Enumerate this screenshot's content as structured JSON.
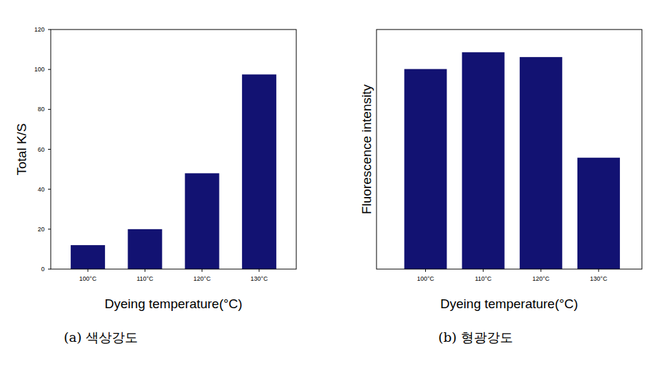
{
  "chart_data": [
    {
      "type": "bar",
      "subtitle": "(a) 색상강도",
      "x_label": "Dyeing temperature(°C)",
      "y_label": "Total K/S",
      "categories": [
        "100°C",
        "110°C",
        "120°C",
        "130°C"
      ],
      "values": [
        12,
        20,
        48,
        97.5
      ],
      "color": "#121272",
      "ylim": [
        0,
        120
      ],
      "yticks": [
        0,
        20,
        40,
        60,
        80,
        100,
        120
      ]
    },
    {
      "type": "bar",
      "subtitle": "(b) 형광강도",
      "x_label": "Dyeing temperature(°C)",
      "y_label": "Fluorescence intensity",
      "categories": [
        "100°C",
        "110°C",
        "120°C",
        "130°C"
      ],
      "values": [
        83.5,
        90.5,
        88.5,
        46.5
      ],
      "color": "#121272",
      "ylim": [
        0,
        100
      ],
      "tick_labels": "x"
    }
  ]
}
